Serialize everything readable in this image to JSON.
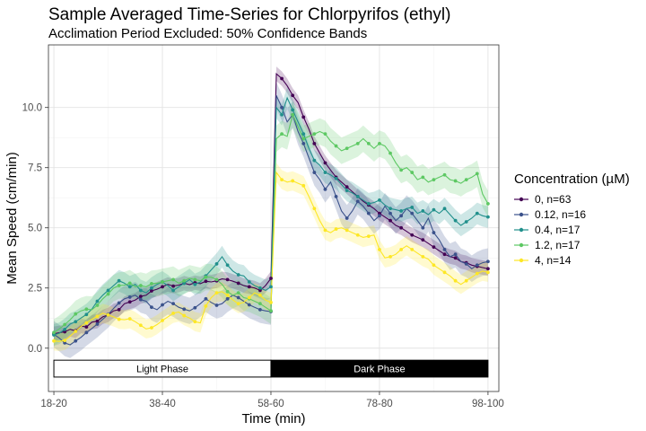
{
  "chart_data": {
    "type": "line",
    "title": "Sample Averaged Time-Series for Chlorpyrifos (ethyl)",
    "subtitle": "Acclimation Period Excluded: 50% Confidence Bands",
    "xlabel": "Time (min)",
    "ylabel": "Mean Speed (cm/min)",
    "xlim": [
      18,
      101
    ],
    "ylim": [
      -1.8,
      12.6
    ],
    "x_ticks": [
      19,
      39,
      59,
      79,
      99
    ],
    "x_tick_labels": [
      "18-20",
      "38-40",
      "58-60",
      "78-80",
      "98-100"
    ],
    "y_ticks": [
      0,
      2.5,
      5,
      7.5,
      10
    ],
    "y_tick_labels": [
      "0.0",
      "2.5",
      "5.0",
      "7.5",
      "10.0"
    ],
    "grid": true,
    "legend": {
      "title": "Concentration (µM)",
      "position": "right"
    },
    "phases": [
      {
        "label": "Light Phase",
        "start": 19,
        "end": 59,
        "fill": "#ffffff",
        "text_color": "#000000"
      },
      {
        "label": "Dark Phase",
        "start": 59,
        "end": 99,
        "fill": "#000000",
        "text_color": "#ffffff"
      }
    ],
    "phase_band_y": [
      -1.2,
      -0.5
    ],
    "x": [
      19,
      20,
      21,
      22,
      23,
      24,
      25,
      26,
      27,
      28,
      29,
      30,
      31,
      32,
      33,
      34,
      35,
      36,
      37,
      38,
      39,
      40,
      41,
      42,
      43,
      44,
      45,
      46,
      47,
      48,
      49,
      50,
      51,
      52,
      53,
      54,
      55,
      56,
      57,
      58,
      59,
      60,
      61,
      62,
      63,
      64,
      65,
      66,
      67,
      68,
      69,
      70,
      71,
      72,
      73,
      74,
      75,
      76,
      77,
      78,
      79,
      80,
      81,
      82,
      83,
      84,
      85,
      86,
      87,
      88,
      89,
      90,
      91,
      92,
      93,
      94,
      95,
      96,
      97,
      98,
      99
    ],
    "series": [
      {
        "name": "0, n=63",
        "color": "#440154",
        "values": [
          0.6,
          0.64,
          0.68,
          0.78,
          0.72,
          0.92,
          0.88,
          1.08,
          1.12,
          1.3,
          1.38,
          1.55,
          1.6,
          1.85,
          1.92,
          2.0,
          2.15,
          2.2,
          2.38,
          2.45,
          2.55,
          2.65,
          2.58,
          2.62,
          2.7,
          2.64,
          2.72,
          2.68,
          2.78,
          2.75,
          2.8,
          2.88,
          2.85,
          2.78,
          2.7,
          2.6,
          2.55,
          2.5,
          2.4,
          2.6,
          2.9,
          11.4,
          11.2,
          10.9,
          10.5,
          10.2,
          9.6,
          9.1,
          8.5,
          8.1,
          7.7,
          7.4,
          7.1,
          6.9,
          6.7,
          6.5,
          6.3,
          6.1,
          5.95,
          5.8,
          5.6,
          5.45,
          5.3,
          5.1,
          5.0,
          4.85,
          4.7,
          4.6,
          4.5,
          4.35,
          4.2,
          4.05,
          3.9,
          3.8,
          3.75,
          3.6,
          3.55,
          3.45,
          3.4,
          3.35,
          3.3
        ],
        "band_width": 0.3
      },
      {
        "name": "0.12, n=16",
        "color": "#3b528b",
        "values": [
          0.58,
          0.42,
          0.22,
          0.14,
          0.3,
          0.45,
          0.65,
          0.82,
          1.0,
          1.2,
          1.4,
          1.65,
          1.88,
          2.05,
          2.12,
          2.2,
          2.02,
          1.95,
          1.7,
          1.6,
          1.8,
          1.95,
          1.85,
          1.7,
          1.62,
          1.55,
          1.68,
          1.85,
          2.05,
          1.9,
          1.78,
          1.85,
          2.05,
          2.2,
          2.1,
          1.95,
          1.8,
          1.7,
          1.6,
          1.55,
          1.52,
          10.5,
          10.0,
          9.4,
          9.7,
          9.0,
          8.5,
          7.9,
          7.3,
          7.0,
          6.6,
          6.9,
          6.3,
          5.7,
          5.4,
          5.7,
          6.1,
          5.9,
          5.6,
          5.3,
          5.5,
          5.9,
          5.6,
          5.3,
          5.5,
          5.8,
          5.6,
          5.3,
          5.0,
          5.4,
          4.8,
          4.5,
          4.1,
          3.8,
          3.9,
          3.6,
          3.5,
          3.3,
          3.45,
          3.55,
          3.6
        ],
        "band_width": 0.55
      },
      {
        "name": "0.4, n=17",
        "color": "#21908c",
        "values": [
          0.55,
          0.62,
          0.78,
          1.0,
          1.1,
          1.25,
          1.4,
          1.62,
          1.95,
          2.2,
          2.4,
          2.6,
          2.8,
          2.7,
          2.55,
          2.65,
          2.4,
          2.3,
          2.5,
          2.65,
          2.75,
          2.6,
          2.4,
          2.55,
          2.7,
          2.85,
          2.65,
          2.75,
          3.0,
          3.25,
          3.5,
          3.8,
          3.45,
          3.2,
          3.05,
          3.0,
          2.75,
          2.6,
          2.5,
          2.4,
          2.55,
          10.0,
          9.7,
          10.4,
          9.9,
          9.4,
          8.9,
          8.3,
          7.8,
          7.6,
          7.3,
          7.2,
          7.05,
          6.8,
          6.55,
          6.45,
          6.3,
          6.15,
          6.0,
          6.05,
          6.15,
          5.95,
          5.8,
          5.75,
          5.7,
          5.8,
          5.85,
          5.6,
          5.7,
          5.55,
          5.75,
          5.6,
          5.8,
          5.55,
          5.3,
          5.1,
          5.25,
          5.4,
          5.6,
          5.5,
          5.45
        ],
        "band_width": 0.45
      },
      {
        "name": "1.2, n=17",
        "color": "#5dc863",
        "values": [
          0.65,
          0.8,
          0.98,
          1.18,
          1.42,
          1.55,
          1.62,
          1.6,
          1.78,
          2.05,
          2.25,
          2.5,
          2.6,
          2.62,
          2.7,
          2.55,
          2.6,
          2.55,
          2.68,
          2.7,
          2.75,
          2.8,
          2.85,
          2.7,
          2.8,
          2.9,
          2.85,
          2.8,
          2.95,
          2.95,
          2.85,
          2.65,
          2.35,
          2.2,
          2.3,
          2.1,
          2.05,
          1.95,
          1.85,
          1.7,
          1.55,
          8.7,
          8.9,
          8.8,
          9.7,
          9.2,
          8.7,
          8.8,
          8.9,
          9.0,
          8.9,
          8.6,
          8.4,
          8.2,
          8.3,
          8.4,
          8.5,
          8.7,
          8.5,
          8.3,
          8.5,
          8.4,
          8.1,
          7.7,
          7.4,
          7.5,
          7.3,
          7.0,
          7.1,
          6.9,
          7.0,
          7.1,
          7.2,
          7.0,
          6.95,
          6.85,
          7.0,
          7.1,
          7.25,
          6.4,
          6.0
        ],
        "band_width": 0.55
      },
      {
        "name": "4, n=14",
        "color": "#fde725",
        "values": [
          0.3,
          0.28,
          0.32,
          0.5,
          0.7,
          0.9,
          1.05,
          1.2,
          1.32,
          1.45,
          1.38,
          1.3,
          1.2,
          1.18,
          1.22,
          1.1,
          0.95,
          0.8,
          0.85,
          0.98,
          1.15,
          1.3,
          1.45,
          1.5,
          1.35,
          1.25,
          1.1,
          1.05,
          1.75,
          2.1,
          2.3,
          2.35,
          2.2,
          2.0,
          1.85,
          1.9,
          2.1,
          2.3,
          2.2,
          2.0,
          1.9,
          7.3,
          7.0,
          6.9,
          6.95,
          6.85,
          6.75,
          6.3,
          5.8,
          5.3,
          4.9,
          4.8,
          4.95,
          5.0,
          4.9,
          4.8,
          4.7,
          4.6,
          4.65,
          4.7,
          4.1,
          3.75,
          3.8,
          3.9,
          4.1,
          4.25,
          4.1,
          3.95,
          3.8,
          3.7,
          3.45,
          3.3,
          3.15,
          3.0,
          2.8,
          2.65,
          2.8,
          2.95,
          3.1,
          3.2,
          3.15
        ],
        "band_width": 0.4
      }
    ]
  }
}
